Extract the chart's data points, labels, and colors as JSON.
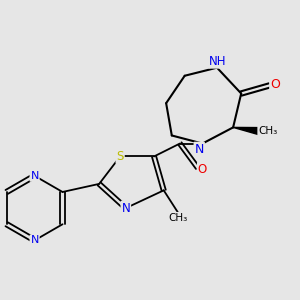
{
  "background_color": "#e6e6e6",
  "atom_colors": {
    "C": "#000000",
    "N": "#0000ee",
    "O": "#ee0000",
    "S": "#bbbb00",
    "H": "#008080"
  },
  "bond_color": "#000000",
  "bond_lw": 1.5,
  "figsize": [
    3.0,
    3.0
  ],
  "dpi": 100,
  "xlim": [
    -0.5,
    3.2
  ],
  "ylim": [
    -1.6,
    1.8
  ]
}
